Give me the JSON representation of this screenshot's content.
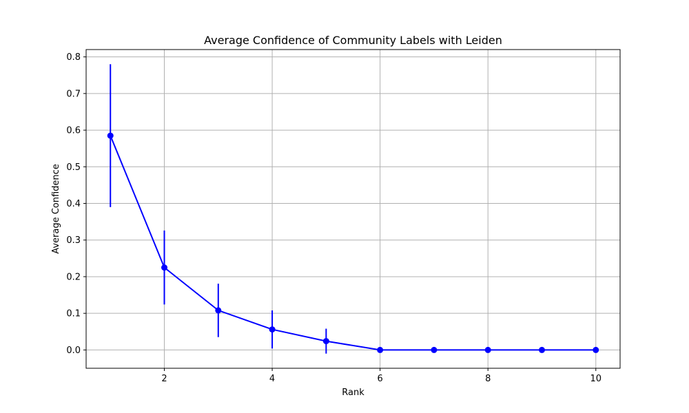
{
  "chart_data": {
    "type": "line",
    "title": "Average Confidence of Community Labels with Leiden",
    "xlabel": "Rank",
    "ylabel": "Average Confidence",
    "xlim": [
      0.55,
      10.45
    ],
    "ylim": [
      -0.05,
      0.82
    ],
    "xticks": [
      2,
      4,
      6,
      8,
      10
    ],
    "yticks": [
      0.0,
      0.1,
      0.2,
      0.3,
      0.4,
      0.5,
      0.6,
      0.7,
      0.8
    ],
    "ytick_labels": [
      "0.0",
      "0.1",
      "0.2",
      "0.3",
      "0.4",
      "0.5",
      "0.6",
      "0.7",
      "0.8"
    ],
    "grid": true,
    "legend": "none",
    "series": [
      {
        "x": [
          1,
          2,
          3,
          4,
          5,
          6,
          7,
          8,
          9,
          10
        ],
        "values": [
          0.585,
          0.225,
          0.108,
          0.056,
          0.024,
          0.0,
          0.0,
          0.0,
          0.0,
          0.0
        ],
        "error": [
          0.195,
          0.101,
          0.073,
          0.052,
          0.034,
          0.0,
          0.0,
          0.0,
          0.0,
          0.0
        ],
        "color": "#0000ff",
        "marker": "circle"
      }
    ],
    "colors": {
      "grid": "#b0b0b0",
      "axes": "#000000"
    }
  }
}
